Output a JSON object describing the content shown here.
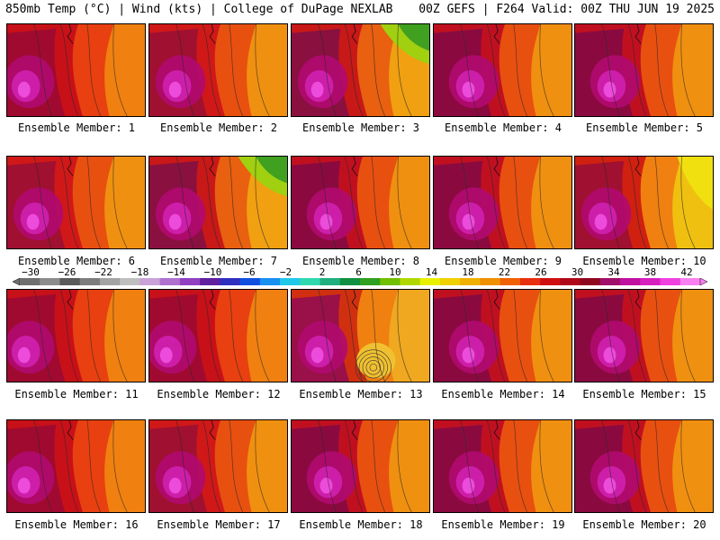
{
  "header": {
    "left": "850mb Temp (°C) | Wind (kts) | College of DuPage NEXLAB",
    "right": "00Z GEFS | F264 Valid: 00Z THU JUN 19 2025"
  },
  "colorbar": {
    "tick_labels": [
      "−30",
      "−26",
      "−22",
      "−18",
      "−14",
      "−10",
      "−6",
      "−2",
      "2",
      "6",
      "10",
      "14",
      "18",
      "22",
      "26",
      "30",
      "34",
      "38",
      "42"
    ],
    "colors": [
      "#6f6f6f",
      "#8c8c8c",
      "#5a5a5a",
      "#7d7d7d",
      "#a3a3a3",
      "#bfbfbf",
      "#c8a2d8",
      "#b070d0",
      "#9040c0",
      "#6020a0",
      "#3030c0",
      "#1050e0",
      "#1890f0",
      "#20c8e8",
      "#30d8b0",
      "#20b080",
      "#109040",
      "#30a020",
      "#70c000",
      "#b0d800",
      "#e8f000",
      "#f0d000",
      "#f0b000",
      "#f09000",
      "#f06000",
      "#e83010",
      "#d01010",
      "#b00818",
      "#900820",
      "#a0106a",
      "#c010a0",
      "#d820c0",
      "#f040e0",
      "#f880f0"
    ]
  },
  "panels": [
    {
      "label": "Ensemble Member: 1",
      "variant": "hot-west"
    },
    {
      "label": "Ensemble Member: 2",
      "variant": "red"
    },
    {
      "label": "Ensemble Member: 3",
      "variant": "green-ne"
    },
    {
      "label": "Ensemble Member: 4",
      "variant": "hot-center"
    },
    {
      "label": "Ensemble Member: 5",
      "variant": "hot-center"
    },
    {
      "label": "Ensemble Member: 6",
      "variant": "red"
    },
    {
      "label": "Ensemble Member: 7",
      "variant": "green-ne"
    },
    {
      "label": "Ensemble Member: 8",
      "variant": "hot-center"
    },
    {
      "label": "Ensemble Member: 9",
      "variant": "hot-center"
    },
    {
      "label": "Ensemble Member: 10",
      "variant": "yellow-east"
    },
    {
      "label": "Ensemble Member: 11",
      "variant": "hot-west"
    },
    {
      "label": "Ensemble Member: 12",
      "variant": "hot-west"
    },
    {
      "label": "Ensemble Member: 13",
      "variant": "low"
    },
    {
      "label": "Ensemble Member: 14",
      "variant": "hot-center"
    },
    {
      "label": "Ensemble Member: 15",
      "variant": "hot-center"
    },
    {
      "label": "Ensemble Member: 16",
      "variant": "hot-west"
    },
    {
      "label": "Ensemble Member: 17",
      "variant": "red"
    },
    {
      "label": "Ensemble Member: 18",
      "variant": "hot-center"
    },
    {
      "label": "Ensemble Member: 19",
      "variant": "hot-center"
    },
    {
      "label": "Ensemble Member: 20",
      "variant": "hot-center"
    }
  ]
}
